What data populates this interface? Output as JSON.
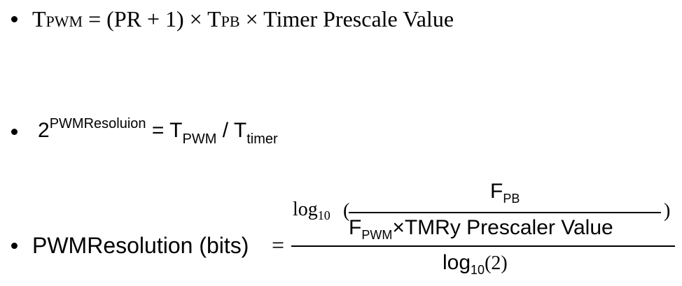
{
  "formula1": {
    "t": "T",
    "t_sub": "PWM",
    "eq": " = (PR + 1) × T",
    "t2_sub": "PB",
    "rest": " × Timer Prescale Value"
  },
  "formula2": {
    "base": "2",
    "exponent": "PWMResoluion",
    "eq": " = T",
    "t_pwm_sub": "PWM",
    "slash": " / T",
    "t_timer_sub": "timer"
  },
  "formula3": {
    "label": "PWMResolution (bits)",
    "equals": "=",
    "log": "log",
    "log_base": "10",
    "open_paren": "(",
    "close_paren": ")",
    "num_f": "F",
    "num_f_sub": "PB",
    "den_f": "F",
    "den_f_sub": "PWM",
    "den_rest": "×TMRy Prescaler Value",
    "bottom_log": "log",
    "bottom_log_base": "10",
    "bottom_arg": "(2)"
  }
}
